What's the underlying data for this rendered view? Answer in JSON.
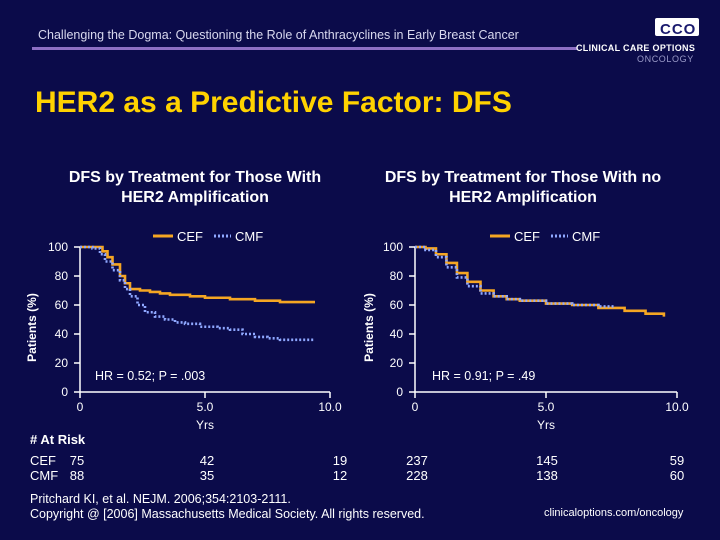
{
  "header": {
    "title": "Challenging the Dogma: Questioning the Role of Anthracyclines in Early Breast Cancer",
    "logo_mark": "CCO",
    "logo_line1": "CLINICAL CARE OPTIONS",
    "logo_line2": "ONCOLOGY"
  },
  "slide_title": "HER2 as a Predictive Factor: DFS",
  "colors": {
    "background": "#0b0b4a",
    "title": "#ffd200",
    "cef": "#f5a623",
    "cmf": "#8fa8ff",
    "axis": "#ffffff"
  },
  "chart_data": [
    {
      "type": "line",
      "title": "DFS by Treatment for Those With HER2 Amplification",
      "title_lines": [
        "DFS by Treatment for Those With",
        "HER2 Amplification"
      ],
      "xlabel": "Yrs",
      "ylabel": "Patients (%)",
      "xlim": [
        0,
        10
      ],
      "ylim": [
        0,
        100
      ],
      "xticks": [
        0,
        5,
        10
      ],
      "xtick_labels": [
        "0",
        "5.0",
        "10.0"
      ],
      "yticks": [
        0,
        20,
        40,
        60,
        80,
        100
      ],
      "ytick_labels": [
        "0",
        "20",
        "40",
        "60",
        "80",
        "100"
      ],
      "annotation": "HR = 0.52; P = .003",
      "legend": {
        "placement": "top-center",
        "entries": [
          "CEF",
          "CMF"
        ]
      },
      "series": [
        {
          "name": "CEF",
          "style": "solid",
          "x": [
            0,
            0.6,
            0.9,
            1.1,
            1.3,
            1.6,
            1.8,
            2.0,
            2.4,
            2.8,
            3.2,
            3.6,
            4.0,
            4.4,
            5.0,
            6.0,
            7.0,
            8.0,
            9.0,
            9.4
          ],
          "y": [
            100,
            100,
            97,
            93,
            88,
            80,
            75,
            71,
            70,
            69,
            68,
            67,
            67,
            66,
            65,
            64,
            63,
            62,
            62,
            62
          ]
        },
        {
          "name": "CMF",
          "style": "dotted",
          "x": [
            0,
            0.5,
            0.8,
            1.0,
            1.3,
            1.6,
            1.8,
            2.0,
            2.3,
            2.6,
            3.0,
            3.4,
            3.8,
            4.2,
            4.8,
            5.5,
            6.0,
            6.5,
            7.0,
            7.5,
            8.0,
            9.0,
            9.4
          ],
          "y": [
            100,
            99,
            95,
            90,
            84,
            77,
            71,
            66,
            60,
            55,
            52,
            50,
            48,
            47,
            45,
            44,
            43,
            40,
            38,
            37,
            36,
            36,
            36
          ]
        }
      ],
      "at_risk": {
        "header": "# At Risk",
        "times": [
          "0",
          "5.0",
          "10.0"
        ],
        "rows": [
          {
            "label": "CEF",
            "values": [
              "75",
              "42",
              "19"
            ]
          },
          {
            "label": "CMF",
            "values": [
              "88",
              "35",
              "12"
            ]
          }
        ]
      }
    },
    {
      "type": "line",
      "title": "DFS by Treatment for Those With no HER2 Amplification",
      "title_lines": [
        "DFS by Treatment for Those With no",
        "HER2 Amplification"
      ],
      "xlabel": "Yrs",
      "ylabel": "Patients (%)",
      "xlim": [
        0,
        10
      ],
      "ylim": [
        0,
        100
      ],
      "xticks": [
        0,
        5,
        10
      ],
      "xtick_labels": [
        "0",
        "5.0",
        "10.0"
      ],
      "yticks": [
        0,
        20,
        40,
        60,
        80,
        100
      ],
      "ytick_labels": [
        "0",
        "20",
        "40",
        "60",
        "80",
        "100"
      ],
      "annotation": "HR = 0.91; P = .49",
      "legend": {
        "placement": "top-right",
        "entries": [
          "CEF",
          "CMF"
        ]
      },
      "series": [
        {
          "name": "CEF",
          "style": "solid",
          "x": [
            0,
            0.4,
            0.8,
            1.2,
            1.6,
            2.0,
            2.5,
            3.0,
            3.5,
            4.0,
            5.0,
            6.0,
            7.0,
            8.0,
            8.8,
            9.5
          ],
          "y": [
            100,
            99,
            95,
            89,
            82,
            76,
            70,
            66,
            64,
            63,
            61,
            60,
            58,
            56,
            54,
            52
          ]
        },
        {
          "name": "CMF",
          "style": "dotted",
          "x": [
            0,
            0.4,
            0.8,
            1.2,
            1.6,
            2.0,
            2.5,
            3.0,
            3.5,
            4.0,
            5.0,
            6.0,
            7.0,
            7.6
          ],
          "y": [
            100,
            98,
            93,
            86,
            79,
            73,
            68,
            66,
            64,
            63,
            61,
            60,
            59,
            59
          ]
        }
      ],
      "at_risk": {
        "times": [
          "0",
          "5.0",
          "10.0"
        ],
        "rows": [
          {
            "label": "CEF",
            "values": [
              "237",
              "145",
              "59"
            ]
          },
          {
            "label": "CMF",
            "values": [
              "228",
              "138",
              "60"
            ]
          }
        ]
      }
    }
  ],
  "citation": {
    "line1": "Pritchard KI, et al. NEJM. 2006;354:2103-2111.",
    "line2": "Copyright @ [2006] Massachusetts Medical Society. All rights reserved."
  },
  "site": "clinicaloptions.com/oncology"
}
